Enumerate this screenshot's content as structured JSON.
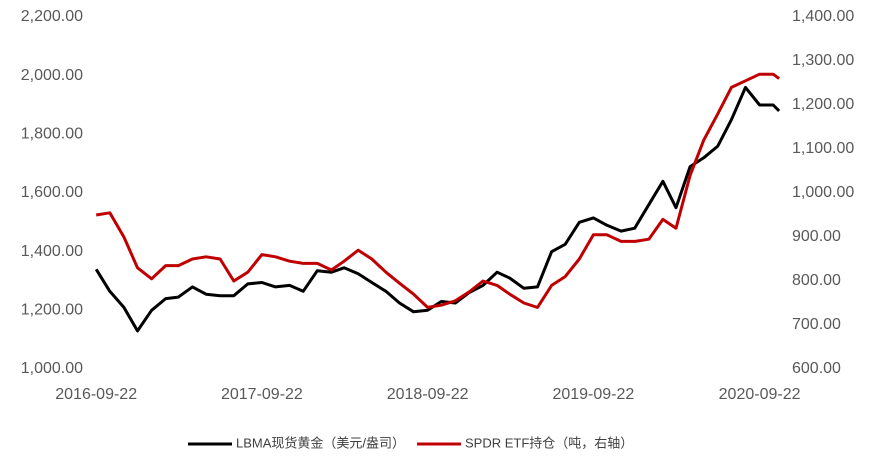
{
  "chart_data": {
    "type": "line",
    "x": [
      "2016-09-22",
      "2016-10-22",
      "2016-11-22",
      "2016-12-22",
      "2017-01-22",
      "2017-02-22",
      "2017-03-22",
      "2017-04-22",
      "2017-05-22",
      "2017-06-22",
      "2017-07-22",
      "2017-08-22",
      "2017-09-22",
      "2017-10-22",
      "2017-11-22",
      "2017-12-22",
      "2018-01-22",
      "2018-02-22",
      "2018-03-22",
      "2018-04-22",
      "2018-05-22",
      "2018-06-22",
      "2018-07-22",
      "2018-08-22",
      "2018-09-22",
      "2018-10-22",
      "2018-11-22",
      "2018-12-22",
      "2019-01-22",
      "2019-02-22",
      "2019-03-22",
      "2019-04-22",
      "2019-05-22",
      "2019-06-22",
      "2019-07-22",
      "2019-08-22",
      "2019-09-22",
      "2019-10-22",
      "2019-11-22",
      "2019-12-22",
      "2020-01-22",
      "2020-02-22",
      "2020-03-22",
      "2020-04-22",
      "2020-05-22",
      "2020-06-22",
      "2020-07-22",
      "2020-08-22",
      "2020-09-22",
      "2020-10-22",
      "2020-11-04"
    ],
    "series": [
      {
        "name": "LBMA现货黄金（美元/盎司）",
        "color": "#000000",
        "axis": "y",
        "values": [
          1340,
          1265,
          1210,
          1130,
          1200,
          1240,
          1245,
          1280,
          1255,
          1250,
          1250,
          1290,
          1295,
          1280,
          1285,
          1265,
          1335,
          1330,
          1345,
          1325,
          1295,
          1265,
          1225,
          1195,
          1200,
          1230,
          1225,
          1260,
          1285,
          1330,
          1310,
          1275,
          1280,
          1400,
          1425,
          1500,
          1515,
          1490,
          1470,
          1480,
          1560,
          1640,
          1550,
          1690,
          1720,
          1760,
          1850,
          1960,
          1900,
          1900,
          1880
        ]
      },
      {
        "name": "SPDR ETF持仓（吨，右轴）",
        "color": "#c00000",
        "axis": "y2",
        "values": [
          950,
          955,
          900,
          830,
          805,
          835,
          835,
          850,
          855,
          850,
          800,
          820,
          860,
          855,
          845,
          840,
          840,
          825,
          845,
          870,
          850,
          820,
          795,
          770,
          740,
          745,
          755,
          775,
          800,
          790,
          770,
          750,
          740,
          790,
          810,
          850,
          905,
          905,
          890,
          890,
          895,
          940,
          920,
          1040,
          1120,
          1180,
          1240,
          1255,
          1270,
          1270,
          1260
        ]
      }
    ],
    "xlim": [
      "2016-09-15",
      "2020-11-06"
    ],
    "xticks": [
      "2016-09-22",
      "2017-09-22",
      "2018-09-22",
      "2019-09-22",
      "2020-09-22"
    ],
    "ylim": [
      1000,
      2200
    ],
    "yticks": [
      {
        "value": 1000,
        "label": "1,000.00"
      },
      {
        "value": 1200,
        "label": "1,200.00"
      },
      {
        "value": 1400,
        "label": "1,400.00"
      },
      {
        "value": 1600,
        "label": "1,600.00"
      },
      {
        "value": 1800,
        "label": "1,800.00"
      },
      {
        "value": 2000,
        "label": "2,000.00"
      },
      {
        "value": 2200,
        "label": "2,200.00"
      }
    ],
    "y2lim": [
      600,
      1400
    ],
    "y2ticks": [
      {
        "value": 600,
        "label": "600.00"
      },
      {
        "value": 700,
        "label": "700.00"
      },
      {
        "value": 800,
        "label": "800.00"
      },
      {
        "value": 900,
        "label": "900.00"
      },
      {
        "value": 1000,
        "label": "1,000.00"
      },
      {
        "value": 1100,
        "label": "1,100.00"
      },
      {
        "value": 1200,
        "label": "1,200.00"
      },
      {
        "value": 1300,
        "label": "1,300.00"
      },
      {
        "value": 1400,
        "label": "1,400.00"
      }
    ],
    "grid": false,
    "legend": "bottom"
  }
}
